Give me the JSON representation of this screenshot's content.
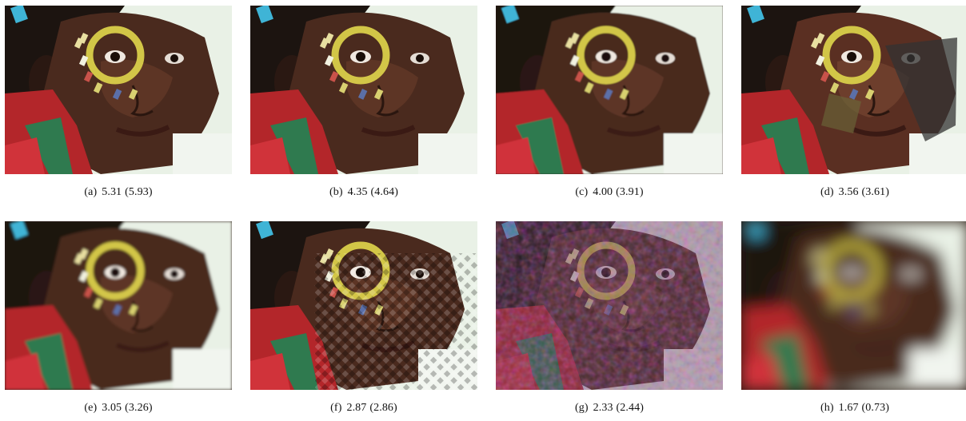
{
  "figure": {
    "panels": [
      {
        "label": "(a)",
        "value": "5.31",
        "paren": "(5.93)",
        "effect": "clean"
      },
      {
        "label": "(b)",
        "value": "4.35",
        "paren": "(4.64)",
        "effect": "clean"
      },
      {
        "label": "(c)",
        "value": "4.00",
        "paren": "(3.91)",
        "effect": "soft"
      },
      {
        "label": "(d)",
        "value": "3.56",
        "paren": "(3.61)",
        "effect": "posterized"
      },
      {
        "label": "(e)",
        "value": "3.05",
        "paren": "(3.26)",
        "effect": "blurred"
      },
      {
        "label": "(f)",
        "value": "2.87",
        "paren": "(2.86)",
        "effect": "checker-artifacts"
      },
      {
        "label": "(g)",
        "value": "2.33",
        "paren": "(2.44)",
        "effect": "color-noise"
      },
      {
        "label": "(h)",
        "value": "1.67",
        "paren": "(0.73)",
        "effect": "heavy-blur"
      }
    ]
  }
}
